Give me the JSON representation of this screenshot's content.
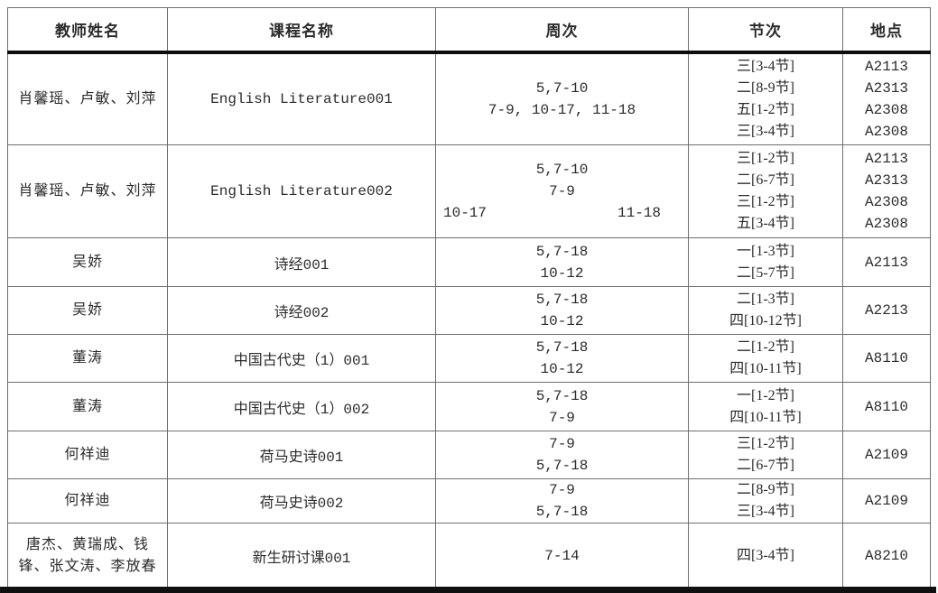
{
  "table": {
    "headers": [
      "教师姓名",
      "课程名称",
      "周次",
      "节次",
      "地点"
    ],
    "rows": [
      {
        "teacher": "肖馨瑶、卢敏、刘萍",
        "course": "English Literature001",
        "weeks": [
          "5,7-10",
          "7-9, 10-17, 11-18"
        ],
        "periods": [
          "三[3-4节]",
          "二[8-9节]",
          "五[1-2节]",
          "三[3-4节]"
        ],
        "locations": [
          "A2113",
          "A2313",
          "A2308",
          "A2308"
        ]
      },
      {
        "teacher": "肖馨瑶、卢敏、刘萍",
        "course": "English Literature002",
        "weeks": [
          "5,7-10",
          "7-9",
          {
            "left": "10-17",
            "right": "11-18"
          }
        ],
        "periods": [
          "三[1-2节]",
          "二[6-7节]",
          "三[1-2节]",
          "五[3-4节]"
        ],
        "locations": [
          "A2113",
          "A2313",
          "A2308",
          "A2308"
        ]
      },
      {
        "teacher": "吴娇",
        "course": "诗经001",
        "weeks": [
          "5,7-18",
          "10-12"
        ],
        "periods": [
          "一[1-3节]",
          "二[5-7节]"
        ],
        "locations": [
          "A2113"
        ]
      },
      {
        "teacher": "吴娇",
        "course": "诗经002",
        "weeks": [
          "5,7-18",
          "10-12"
        ],
        "periods": [
          "二[1-3节]",
          "四[10-12节]"
        ],
        "locations": [
          "A2213"
        ]
      },
      {
        "teacher": "董涛",
        "course": "中国古代史（1）001",
        "weeks": [
          "5,7-18",
          "10-12"
        ],
        "periods": [
          "二[1-2节]",
          "四[10-11节]"
        ],
        "locations": [
          "A8110"
        ]
      },
      {
        "teacher": "董涛",
        "course": "中国古代史（1）002",
        "weeks": [
          "5,7-18",
          "7-9"
        ],
        "periods": [
          "一[1-2节]",
          "四[10-11节]"
        ],
        "locations": [
          "A8110"
        ]
      },
      {
        "teacher": "何祥迪",
        "course": "荷马史诗001",
        "weeks": [
          "7-9",
          "5,7-18"
        ],
        "periods": [
          "三[1-2节]",
          "二[6-7节]"
        ],
        "locations": [
          "A2109"
        ]
      },
      {
        "teacher": "何祥迪",
        "course": "荷马史诗002",
        "weeks": [
          "7-9",
          "5,7-18"
        ],
        "periods": [
          "二[8-9节]",
          "三[3-4节]"
        ],
        "locations": [
          "A2109"
        ]
      },
      {
        "teacher": "唐杰、黄瑞成、钱锋、张文涛、李放春",
        "course": "新生研讨课001",
        "weeks": [
          "7-14"
        ],
        "periods": [
          "四[3-4节]"
        ],
        "locations": [
          "A8210"
        ]
      }
    ]
  }
}
